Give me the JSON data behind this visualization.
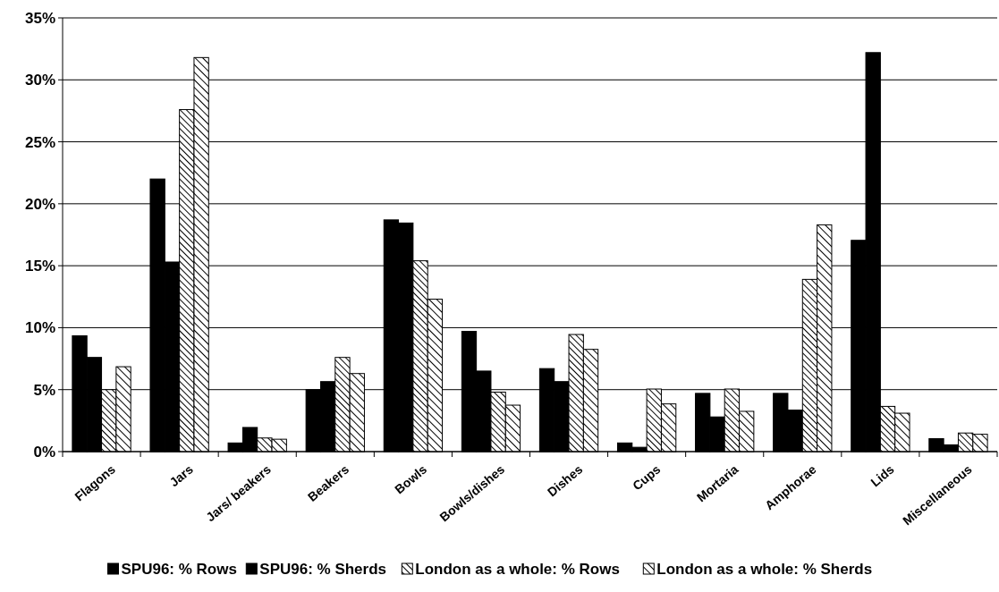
{
  "chart_data": {
    "type": "bar",
    "categories": [
      "Flagons",
      "Jars",
      "Jars/ beakers",
      "Beakers",
      "Bowls",
      "Bowls/dishes",
      "Dishes",
      "Cups",
      "Mortaria",
      "Amphorae",
      "Lids",
      "Miscellaneous"
    ],
    "series": [
      {
        "name": "SPU96: % Rows",
        "color": "#000000",
        "values": [
          9.35,
          22.0,
          0.7,
          5.0,
          18.7,
          9.7,
          6.7,
          0.7,
          4.7,
          4.7,
          17.05,
          1.05
        ]
      },
      {
        "name": "SPU96: % Sherds",
        "color": "#000000",
        "values": [
          7.6,
          15.3,
          1.95,
          5.65,
          18.45,
          6.5,
          5.65,
          0.35,
          2.8,
          3.35,
          32.2,
          0.55
        ]
      },
      {
        "name": "London as a whole: % Rows",
        "color": "#000000",
        "values": [
          5.0,
          27.6,
          1.1,
          7.6,
          15.4,
          4.8,
          9.45,
          5.05,
          5.05,
          13.9,
          3.65,
          1.5
        ]
      },
      {
        "name": "London as a whole: % Sherds",
        "color": "#000000",
        "values": [
          6.85,
          31.8,
          1.0,
          6.3,
          12.3,
          3.75,
          8.25,
          3.85,
          3.25,
          18.3,
          3.1,
          1.4
        ]
      }
    ],
    "ylim": [
      0,
      35
    ],
    "yticks": [
      {
        "value": 0,
        "label": "0%"
      },
      {
        "value": 5,
        "label": "5%"
      },
      {
        "value": 10,
        "label": "10%"
      },
      {
        "value": 15,
        "label": "15%"
      },
      {
        "value": 20,
        "label": "20%"
      },
      {
        "value": 25,
        "label": "25%"
      },
      {
        "value": 30,
        "label": "30%"
      },
      {
        "value": 35,
        "label": "35%"
      }
    ],
    "grid": "y",
    "legend": "bottom"
  }
}
